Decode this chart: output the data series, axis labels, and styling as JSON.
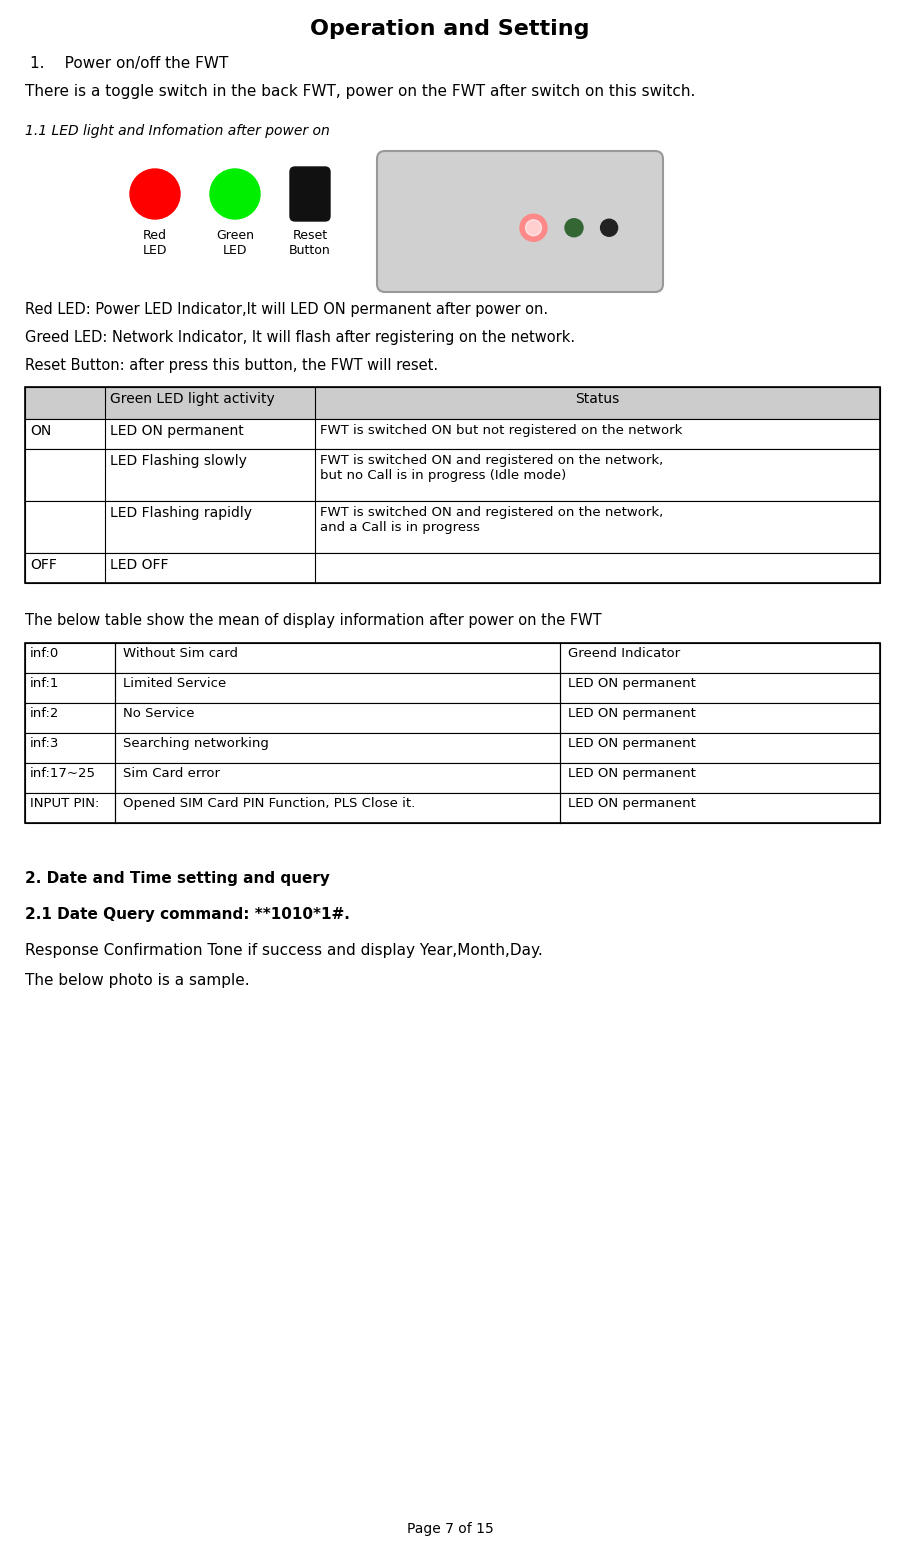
{
  "title": "Operation and Setting",
  "bg_color": "#ffffff",
  "page_footer": "Page 7 of 15",
  "section1_heading": "1.  Power on/off the FWT",
  "section1_body": "There is a toggle switch in the back FWT, power on the FWT after switch on this switch.",
  "section11_heading": "1.1 LED light and Infomation after power on",
  "led_labels": [
    "Red\nLED",
    "Green\nLED",
    "Reset\nButton"
  ],
  "led_colors": [
    "#ff0000",
    "#00ff00",
    "#111111"
  ],
  "desc_lines": [
    "Red LED: Power LED Indicator,It will LED ON permanent after power on.",
    "Greed LED: Network Indicator, It will flash after registering on the network.",
    "Reset Button: after press this button, the FWT will reset."
  ],
  "table1_header": [
    "",
    "Green LED light activity",
    "Status"
  ],
  "table1_header_bg": "#cccccc",
  "table1_rows": [
    [
      "ON",
      "LED ON permanent",
      "FWT is switched ON but not registered on the network"
    ],
    [
      "",
      "LED Flashing slowly",
      "FWT is switched ON and registered on the network,\nbut no Call is in progress (Idle mode)"
    ],
    [
      "",
      "LED Flashing rapidly",
      "FWT is switched ON and registered on the network,\nand a Call is in progress"
    ],
    [
      "OFF",
      "LED OFF",
      ""
    ]
  ],
  "section2_intro": "The below table show the mean of display information after power on the FWT",
  "table2_rows": [
    [
      "inf:0",
      "Without Sim card",
      "Greend Indicator"
    ],
    [
      "inf:1",
      "Limited Service",
      "LED ON permanent"
    ],
    [
      "inf:2",
      "No Service",
      "LED ON permanent"
    ],
    [
      "inf:3",
      "Searching networking",
      "LED ON permanent"
    ],
    [
      "inf:17~25",
      "Sim Card error",
      "LED ON permanent"
    ],
    [
      "INPUT PIN:",
      "Opened SIM Card PIN Function, PLS Close it.",
      "LED ON permanent"
    ]
  ],
  "section3_heading1": "2. Date and Time setting and query",
  "section3_heading2": "2.1 Date Query command: **1010*1#.",
  "section3_body1": "Response Confirmation Tone if success and display Year,Month,Day.",
  "section3_body2": "The below photo is a sample."
}
